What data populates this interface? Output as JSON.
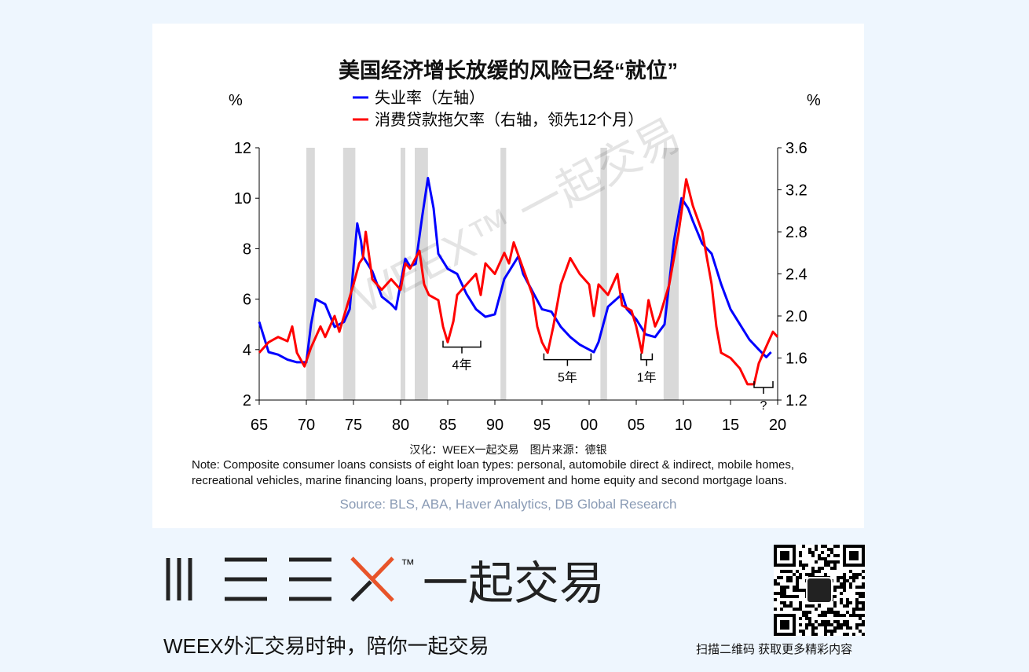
{
  "title": "美国经济增长放缓的风险已经“就位”",
  "credit": "汉化：WEEX一起交易　图片来源：德银",
  "note": "Note: Composite consumer loans consists of eight loan types: personal, automobile direct & indirect, mobile homes, recreational vehicles, marine financing loans, property improvement and home equity and second mortgage loans.",
  "source": "Source: BLS, ABA, Haver Analytics, DB Global Research",
  "watermark": "WEEX™ 一起交易",
  "footer": {
    "logo_text": "WEEX",
    "logo_tm": "™",
    "logo_cn": "一起交易",
    "slogan": "WEEX外汇交易时钟，陪你一起交易",
    "qr_caption": "扫描二维码 获取更多精彩内容"
  },
  "colors": {
    "unemployment": "#0000ff",
    "delinquency": "#ff0000",
    "recession": "#d9d9d9",
    "accent": "#e8542a"
  },
  "chart_data": {
    "type": "line",
    "title": "美国经济增长放缓的风险已经“就位”",
    "ylabel_left": "%",
    "ylabel_right": "%",
    "xlim": [
      1965,
      2020
    ],
    "ylim_left": [
      2,
      12
    ],
    "ylim_right": [
      1.2,
      3.6
    ],
    "x_ticks": [
      {
        "v": 1965,
        "l": "65"
      },
      {
        "v": 1970,
        "l": "70"
      },
      {
        "v": 1975,
        "l": "75"
      },
      {
        "v": 1980,
        "l": "80"
      },
      {
        "v": 1985,
        "l": "85"
      },
      {
        "v": 1990,
        "l": "90"
      },
      {
        "v": 1995,
        "l": "95"
      },
      {
        "v": 2000,
        "l": "00"
      },
      {
        "v": 2005,
        "l": "05"
      },
      {
        "v": 2010,
        "l": "10"
      },
      {
        "v": 2015,
        "l": "15"
      },
      {
        "v": 2020,
        "l": "20"
      }
    ],
    "y_ticks_left": [
      "2",
      "4",
      "6",
      "8",
      "10",
      "12"
    ],
    "y_ticks_right": [
      "1.2",
      "1.6",
      "2.0",
      "2.4",
      "2.8",
      "3.2",
      "3.6"
    ],
    "legend_placement": "top-left",
    "recessions": [
      [
        1970.0,
        1970.9
      ],
      [
        1973.9,
        1975.2
      ],
      [
        1980.0,
        1980.5
      ],
      [
        1981.5,
        1982.9
      ],
      [
        1990.6,
        1991.2
      ],
      [
        2001.2,
        2001.9
      ],
      [
        2007.9,
        2009.5
      ]
    ],
    "series": [
      {
        "name": "失业率（左轴）",
        "axis": "left",
        "points": [
          [
            1965,
            5.1
          ],
          [
            1965.5,
            4.5
          ],
          [
            1966,
            3.9
          ],
          [
            1967,
            3.8
          ],
          [
            1968,
            3.6
          ],
          [
            1969,
            3.5
          ],
          [
            1970,
            3.5
          ],
          [
            1970.5,
            5.0
          ],
          [
            1971,
            6.0
          ],
          [
            1971.5,
            5.9
          ],
          [
            1972,
            5.8
          ],
          [
            1973,
            4.9
          ],
          [
            1974,
            5.1
          ],
          [
            1974.6,
            5.6
          ],
          [
            1975.4,
            9.0
          ],
          [
            1975.8,
            8.3
          ],
          [
            1976,
            7.7
          ],
          [
            1977,
            7.1
          ],
          [
            1978,
            6.1
          ],
          [
            1979,
            5.8
          ],
          [
            1979.5,
            5.6
          ],
          [
            1980.5,
            7.6
          ],
          [
            1981,
            7.3
          ],
          [
            1981.6,
            7.4
          ],
          [
            1982.3,
            9.3
          ],
          [
            1982.9,
            10.8
          ],
          [
            1983.5,
            9.6
          ],
          [
            1984,
            7.8
          ],
          [
            1985,
            7.2
          ],
          [
            1986,
            7.0
          ],
          [
            1987,
            6.2
          ],
          [
            1988,
            5.6
          ],
          [
            1989,
            5.3
          ],
          [
            1990,
            5.4
          ],
          [
            1991,
            6.8
          ],
          [
            1992.5,
            7.7
          ],
          [
            1993,
            7.0
          ],
          [
            1994,
            6.3
          ],
          [
            1995,
            5.6
          ],
          [
            1996,
            5.5
          ],
          [
            1997,
            4.9
          ],
          [
            1998,
            4.5
          ],
          [
            1999,
            4.2
          ],
          [
            2000,
            4.0
          ],
          [
            2000.5,
            3.9
          ],
          [
            2001,
            4.3
          ],
          [
            2002,
            5.7
          ],
          [
            2003.5,
            6.2
          ],
          [
            2004,
            5.6
          ],
          [
            2005,
            5.2
          ],
          [
            2006,
            4.6
          ],
          [
            2007,
            4.5
          ],
          [
            2008,
            5.0
          ],
          [
            2009,
            8.3
          ],
          [
            2009.8,
            10.0
          ],
          [
            2010.5,
            9.6
          ],
          [
            2011,
            9.1
          ],
          [
            2012,
            8.2
          ],
          [
            2013,
            7.8
          ],
          [
            2014,
            6.6
          ],
          [
            2015,
            5.6
          ],
          [
            2016,
            5.0
          ],
          [
            2017,
            4.4
          ],
          [
            2018,
            4.0
          ],
          [
            2018.8,
            3.7
          ],
          [
            2019.3,
            3.9
          ]
        ]
      },
      {
        "name": "消费贷款拖欠率（右轴，领先12个月）",
        "axis": "right",
        "points": [
          [
            1965,
            1.65
          ],
          [
            1965.5,
            1.7
          ],
          [
            1966,
            1.75
          ],
          [
            1967,
            1.8
          ],
          [
            1968,
            1.76
          ],
          [
            1968.5,
            1.9
          ],
          [
            1969,
            1.65
          ],
          [
            1969.8,
            1.52
          ],
          [
            1970.5,
            1.7
          ],
          [
            1971.5,
            1.9
          ],
          [
            1972,
            1.8
          ],
          [
            1973,
            2.0
          ],
          [
            1973.5,
            1.85
          ],
          [
            1974,
            2.0
          ],
          [
            1975,
            2.3
          ],
          [
            1975.6,
            2.5
          ],
          [
            1976,
            2.55
          ],
          [
            1976.3,
            2.8
          ],
          [
            1977,
            2.35
          ],
          [
            1978,
            2.25
          ],
          [
            1979,
            2.35
          ],
          [
            1980,
            2.25
          ],
          [
            1980.5,
            2.5
          ],
          [
            1981,
            2.45
          ],
          [
            1982,
            2.62
          ],
          [
            1982.5,
            2.3
          ],
          [
            1983,
            2.2
          ],
          [
            1984,
            2.15
          ],
          [
            1984.5,
            1.9
          ],
          [
            1985,
            1.75
          ],
          [
            1985.6,
            1.95
          ],
          [
            1986,
            2.2
          ],
          [
            1987,
            2.3
          ],
          [
            1988,
            2.4
          ],
          [
            1988.5,
            2.2
          ],
          [
            1989,
            2.5
          ],
          [
            1990,
            2.4
          ],
          [
            1991,
            2.6
          ],
          [
            1991.5,
            2.5
          ],
          [
            1992,
            2.7
          ],
          [
            1993,
            2.45
          ],
          [
            1994,
            2.2
          ],
          [
            1994.5,
            1.9
          ],
          [
            1995,
            1.75
          ],
          [
            1995.6,
            1.65
          ],
          [
            1996.2,
            1.9
          ],
          [
            1997,
            2.3
          ],
          [
            1998,
            2.55
          ],
          [
            1999,
            2.4
          ],
          [
            2000,
            2.3
          ],
          [
            2000.5,
            2.0
          ],
          [
            2001,
            2.3
          ],
          [
            2002,
            2.2
          ],
          [
            2003,
            2.4
          ],
          [
            2003.5,
            2.1
          ],
          [
            2004.5,
            2.05
          ],
          [
            2005,
            1.9
          ],
          [
            2005.6,
            1.65
          ],
          [
            2006.3,
            2.15
          ],
          [
            2007,
            1.9
          ],
          [
            2007.5,
            2.0
          ],
          [
            2008.5,
            2.3
          ],
          [
            2009.5,
            2.8
          ],
          [
            2010.3,
            3.3
          ],
          [
            2011,
            3.05
          ],
          [
            2012,
            2.8
          ],
          [
            2013,
            2.3
          ],
          [
            2013.5,
            1.9
          ],
          [
            2014,
            1.65
          ],
          [
            2015,
            1.6
          ],
          [
            2016,
            1.5
          ],
          [
            2016.8,
            1.35
          ],
          [
            2017.5,
            1.35
          ],
          [
            2018,
            1.55
          ],
          [
            2019,
            1.75
          ],
          [
            2019.5,
            1.85
          ],
          [
            2020,
            1.8
          ]
        ]
      }
    ],
    "annotations": [
      {
        "label": "4年",
        "from": 1984.5,
        "to": 1988.5,
        "value": 4.1
      },
      {
        "label": "5年",
        "from": 1995.2,
        "to": 2000.2,
        "value": 3.6
      },
      {
        "label": "1年",
        "from": 2005.5,
        "to": 2006.7,
        "value": 3.6
      },
      {
        "label": "?",
        "from": 2017.5,
        "to": 2019.5,
        "value": 2.5
      }
    ]
  }
}
